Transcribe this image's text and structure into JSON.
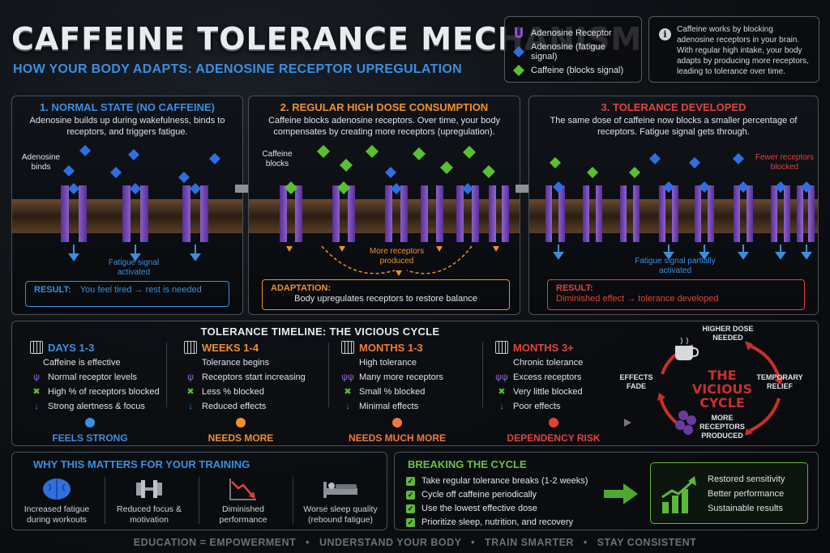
{
  "header": {
    "title": "CAFFEINE TOLERANCE MECHANISM",
    "subtitle": "HOW YOUR BODY ADAPTS: ADENOSINE RECEPTOR UPREGULATION"
  },
  "legend": {
    "items": [
      {
        "label": "Adenosine Receptor",
        "icon": "receptor-icon",
        "color": "#8a4fd0"
      },
      {
        "label": "Adenosine (fatigue signal)",
        "icon": "blue-diamond-icon",
        "color": "#2f6fe0"
      },
      {
        "label": "Caffeine (blocks signal)",
        "icon": "green-diamond-icon",
        "color": "#59c12e"
      }
    ]
  },
  "info": {
    "icon": "info-icon",
    "text": "Caffeine works by blocking adenosine receptors in your brain. With regular high intake, your body adapts by producing more receptors, leading to tolerance over time."
  },
  "panels": [
    {
      "title": "1. NORMAL STATE (NO CAFFEINE)",
      "desc": "Adenosine builds up during wakefulness, binds to receptors, and triggers fatigue.",
      "label_a": "Adenosine binds",
      "label_b": "Fatigue signal activated",
      "result_label": "RESULT:",
      "result_text": "You feel tired → rest is needed",
      "color": "#3a8fe0"
    },
    {
      "title": "2. REGULAR HIGH DOSE CONSUMPTION",
      "desc": "Caffeine blocks adenosine receptors. Over time, your body compensates by creating more receptors (upregulation).",
      "label_a": "Caffeine blocks",
      "label_b": "More receptors produced",
      "result_label": "ADAPTATION:",
      "result_text": "Body upregulates receptors to restore balance",
      "color": "#f0902a"
    },
    {
      "title": "3. TOLERANCE DEVELOPED",
      "desc": "The same dose of caffeine now blocks a smaller percentage of receptors. Fatigue signal gets through.",
      "label_a": "Fewer receptors blocked",
      "label_b": "Fatigue signal partially activated",
      "result_label": "RESULT:",
      "result_text": "Diminished effect → tolerance developed",
      "color": "#e2423a"
    }
  ],
  "timeline": {
    "title": "TOLERANCE TIMELINE: THE VICIOUS CYCLE",
    "stages": [
      {
        "heading": "DAYS 1-3",
        "color": "#3a8fe0",
        "summary": "Caffeine is effective",
        "lines": [
          "Normal receptor levels",
          "High % of receptors blocked",
          "Strong alertness & focus"
        ],
        "status": "FEELS STRONG"
      },
      {
        "heading": "WEEKS 1-4",
        "color": "#f0902a",
        "summary": "Tolerance begins",
        "lines": [
          "Receptors start increasing",
          "Less % blocked",
          "Reduced effects"
        ],
        "status": "NEEDS MORE"
      },
      {
        "heading": "MONTHS 1-3",
        "color": "#f07a3a",
        "summary": "High tolerance",
        "lines": [
          "Many more receptors",
          "Small % blocked",
          "Minimal effects"
        ],
        "status": "NEEDS MUCH MORE"
      },
      {
        "heading": "MONTHS 3+",
        "color": "#e2423a",
        "summary": "Chronic tolerance",
        "lines": [
          "Excess receptors",
          "Very little blocked",
          "Poor effects"
        ],
        "status": "DEPENDENCY RISK"
      }
    ]
  },
  "cycle": {
    "center": "THE VICIOUS CYCLE",
    "top": "HIGHER DOSE NEEDED",
    "right": "TEMPORARY RELIEF",
    "bottom": "MORE RECEPTORS PRODUCED",
    "left": "EFFECTS FADE"
  },
  "why": {
    "title": "WHY THIS MATTERS FOR YOUR TRAINING",
    "items": [
      {
        "icon": "brain-icon",
        "label": "Increased fatigue during workouts"
      },
      {
        "icon": "dumbbell-icon",
        "label": "Reduced focus & motivation"
      },
      {
        "icon": "declining-chart-icon",
        "label": "Diminished performance"
      },
      {
        "icon": "bed-icon",
        "label": "Worse sleep quality (rebound fatigue)"
      }
    ]
  },
  "breaking": {
    "title": "BREAKING THE CYCLE",
    "items": [
      "Take regular tolerance breaks (1-2 weeks)",
      "Cycle off caffeine periodically",
      "Use the lowest effective dose",
      "Prioritize sleep, nutrition, and recovery"
    ],
    "results": [
      "Restored sensitivity",
      "Better performance",
      "Sustainable results"
    ]
  },
  "footer": "EDUCATION = EMPOWERMENT   •   UNDERSTAND YOUR BODY   •   TRAIN SMARTER   •   STAY CONSISTENT"
}
